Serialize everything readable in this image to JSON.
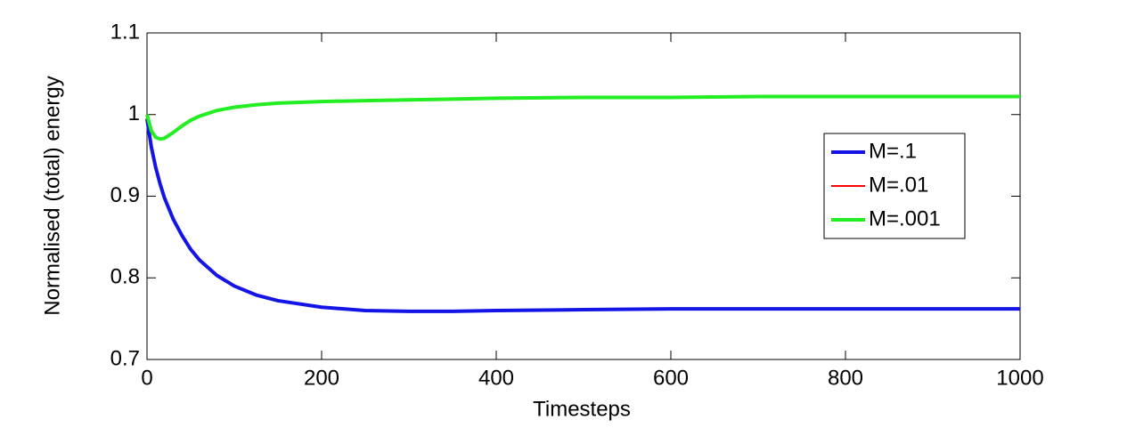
{
  "chart_data": {
    "type": "line",
    "xlabel": "Timesteps",
    "ylabel": "Normalised (total) energy",
    "x": [
      0,
      5,
      10,
      15,
      20,
      30,
      40,
      50,
      60,
      80,
      100,
      125,
      150,
      200,
      250,
      300,
      350,
      400,
      500,
      600,
      700,
      800,
      900,
      1000
    ],
    "series": [
      {
        "name": "M=.1",
        "color": "#1414e6",
        "width": 4,
        "values": [
          0.995,
          0.96,
          0.935,
          0.915,
          0.898,
          0.872,
          0.852,
          0.835,
          0.822,
          0.803,
          0.79,
          0.779,
          0.772,
          0.764,
          0.76,
          0.759,
          0.759,
          0.76,
          0.761,
          0.762,
          0.762,
          0.762,
          0.762,
          0.762
        ]
      },
      {
        "name": "M=.01",
        "color": "#ff0000",
        "width": 2,
        "values": [
          1.0,
          0.98,
          0.972,
          0.97,
          0.971,
          0.978,
          0.986,
          0.993,
          0.998,
          1.005,
          1.009,
          1.012,
          1.014,
          1.016,
          1.017,
          1.018,
          1.019,
          1.02,
          1.021,
          1.021,
          1.022,
          1.022,
          1.022,
          1.022
        ]
      },
      {
        "name": "M=.001",
        "color": "#22ee22",
        "width": 4,
        "values": [
          1.0,
          0.98,
          0.972,
          0.97,
          0.971,
          0.978,
          0.986,
          0.993,
          0.998,
          1.005,
          1.009,
          1.012,
          1.014,
          1.016,
          1.017,
          1.018,
          1.019,
          1.02,
          1.021,
          1.021,
          1.022,
          1.022,
          1.022,
          1.022
        ]
      }
    ],
    "xlim": [
      0,
      1000
    ],
    "xticks": [
      0,
      200,
      400,
      600,
      800,
      1000
    ],
    "ylim": [
      0.7,
      1.1
    ],
    "yticks": [
      0.7,
      0.8,
      0.9,
      1,
      1.1
    ],
    "grid": false,
    "legend_position": "center right"
  }
}
